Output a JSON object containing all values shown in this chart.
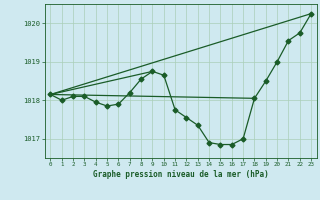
{
  "background_color": "#cfe9f0",
  "plot_bg_color": "#cfe9f0",
  "grid_color": "#aacfb8",
  "line_color": "#1a5c28",
  "title": "Graphe pression niveau de la mer (hPa)",
  "xlim": [
    -0.5,
    23.5
  ],
  "ylim": [
    1016.5,
    1020.5
  ],
  "yticks": [
    1017,
    1018,
    1019,
    1020
  ],
  "xticks": [
    0,
    1,
    2,
    3,
    4,
    5,
    6,
    7,
    8,
    9,
    10,
    11,
    12,
    13,
    14,
    15,
    16,
    17,
    18,
    19,
    20,
    21,
    22,
    23
  ],
  "series_main": {
    "x": [
      0,
      1,
      2,
      3,
      4,
      5,
      6,
      7,
      8,
      9,
      10,
      11,
      12,
      13,
      14,
      15,
      16,
      17,
      18,
      19,
      20,
      21,
      22,
      23
    ],
    "y": [
      1018.15,
      1018.0,
      1018.1,
      1018.1,
      1017.95,
      1017.85,
      1017.9,
      1018.2,
      1018.55,
      1018.75,
      1018.65,
      1017.75,
      1017.55,
      1017.35,
      1016.9,
      1016.85,
      1016.85,
      1017.0,
      1018.05,
      1018.5,
      1019.0,
      1019.55,
      1019.75,
      1020.25
    ]
  },
  "series_trend_full": {
    "x": [
      0,
      23
    ],
    "y": [
      1018.15,
      1020.25
    ]
  },
  "series_trend_partial": {
    "x": [
      0,
      9
    ],
    "y": [
      1018.15,
      1018.75
    ]
  },
  "series_flat": {
    "x": [
      0,
      18
    ],
    "y": [
      1018.15,
      1018.05
    ]
  },
  "marker_style": "D",
  "marker_size": 2.5,
  "linewidth": 0.9
}
